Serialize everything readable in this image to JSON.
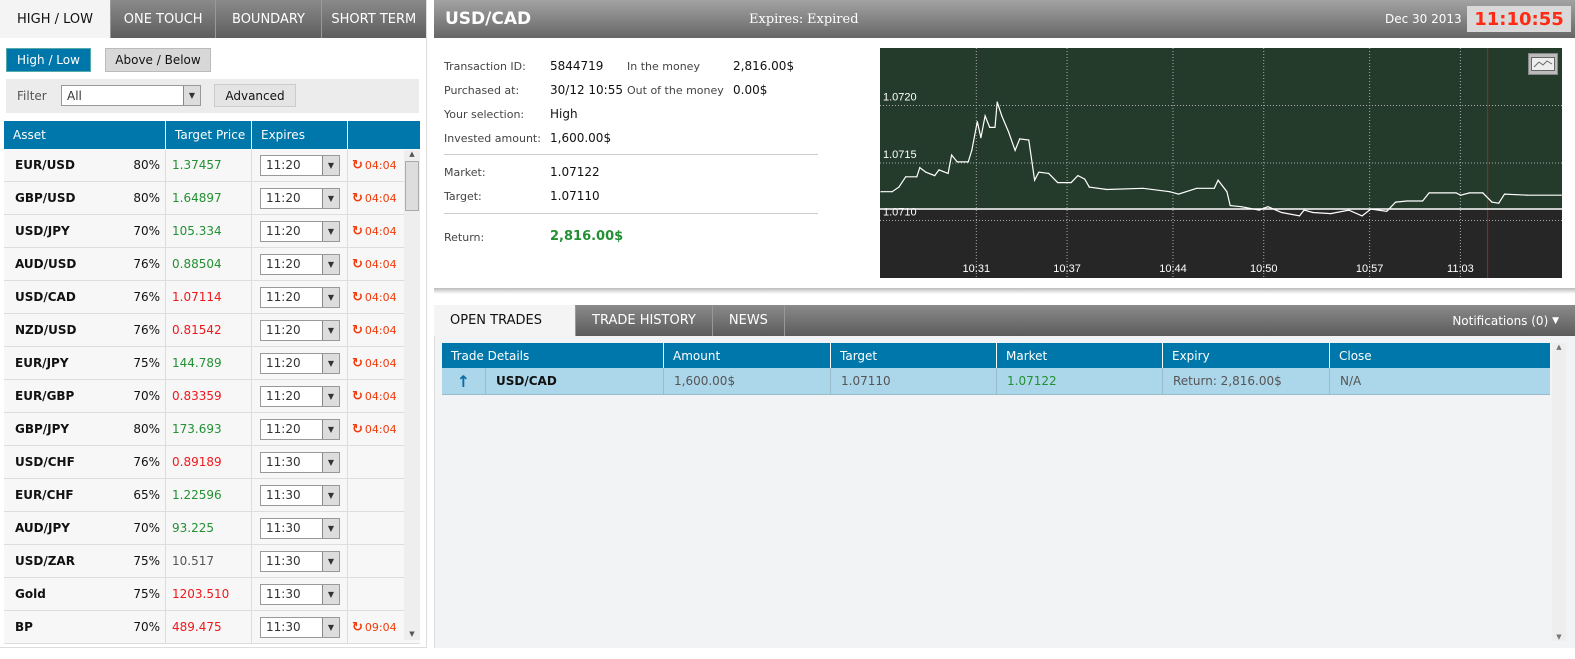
{
  "left_tabs": [
    "HIGH / LOW",
    "ONE TOUCH",
    "BOUNDARY",
    "SHORT TERM"
  ],
  "sub_buttons": [
    "High / Low",
    "Above / Below"
  ],
  "filter": {
    "label": "Filter",
    "value": "All",
    "advanced": "Advanced"
  },
  "asset_table": {
    "headers": [
      "Asset",
      "Target Price",
      "Expires",
      ""
    ],
    "rows": [
      {
        "asset": "EUR/USD",
        "pct": "80%",
        "price": "1.37457",
        "dir": "up",
        "expires": "11:20",
        "timer": "04:04"
      },
      {
        "asset": "GBP/USD",
        "pct": "80%",
        "price": "1.64897",
        "dir": "up",
        "expires": "11:20",
        "timer": "04:04"
      },
      {
        "asset": "USD/JPY",
        "pct": "70%",
        "price": "105.334",
        "dir": "up",
        "expires": "11:20",
        "timer": "04:04"
      },
      {
        "asset": "AUD/USD",
        "pct": "76%",
        "price": "0.88504",
        "dir": "up",
        "expires": "11:20",
        "timer": "04:04"
      },
      {
        "asset": "USD/CAD",
        "pct": "76%",
        "price": "1.07114",
        "dir": "down",
        "expires": "11:20",
        "timer": "04:04"
      },
      {
        "asset": "NZD/USD",
        "pct": "76%",
        "price": "0.81542",
        "dir": "down",
        "expires": "11:20",
        "timer": "04:04"
      },
      {
        "asset": "EUR/JPY",
        "pct": "75%",
        "price": "144.789",
        "dir": "up",
        "expires": "11:20",
        "timer": "04:04"
      },
      {
        "asset": "EUR/GBP",
        "pct": "70%",
        "price": "0.83359",
        "dir": "down",
        "expires": "11:20",
        "timer": "04:04"
      },
      {
        "asset": "GBP/JPY",
        "pct": "80%",
        "price": "173.693",
        "dir": "up",
        "expires": "11:20",
        "timer": "04:04"
      },
      {
        "asset": "USD/CHF",
        "pct": "76%",
        "price": "0.89189",
        "dir": "down",
        "expires": "11:30",
        "timer": ""
      },
      {
        "asset": "EUR/CHF",
        "pct": "65%",
        "price": "1.22596",
        "dir": "up",
        "expires": "11:30",
        "timer": ""
      },
      {
        "asset": "AUD/JPY",
        "pct": "70%",
        "price": "93.225",
        "dir": "up",
        "expires": "11:30",
        "timer": ""
      },
      {
        "asset": "USD/ZAR",
        "pct": "75%",
        "price": "10.517",
        "dir": "flat",
        "expires": "11:30",
        "timer": ""
      },
      {
        "asset": "Gold",
        "pct": "75%",
        "price": "1203.510",
        "dir": "down",
        "expires": "11:30",
        "timer": ""
      },
      {
        "asset": "BP",
        "pct": "70%",
        "price": "489.475",
        "dir": "down",
        "expires": "11:30",
        "timer": "09:04"
      }
    ]
  },
  "header": {
    "asset": "USD/CAD",
    "expires_label": "Expires:",
    "expires_value": "Expired",
    "date": "Dec 30 2013",
    "clock": "11:10:55"
  },
  "details": {
    "transaction_id_label": "Transaction ID:",
    "transaction_id": "5844719",
    "purchased_label": "Purchased at:",
    "purchased": "30/12 10:55",
    "selection_label": "Your selection:",
    "selection": "High",
    "invested_label": "Invested amount:",
    "invested": "1,600.00$",
    "in_money_label": "In the money",
    "in_money": "2,816.00$",
    "out_money_label": "Out of the money",
    "out_money": "0.00$",
    "market_label": "Market:",
    "market": "1.07122",
    "target_label": "Target:",
    "target": "1.07110",
    "return_label": "Return:",
    "return": "2,816.00$"
  },
  "chart_data": {
    "type": "line",
    "xlim": [
      "10:24:38",
      "11:09:43"
    ],
    "ylim": [
      1.0705,
      1.0725
    ],
    "yticks": [
      "1.0710",
      "1.0715",
      "1.0720"
    ],
    "xticks": [
      "10:31",
      "10:37",
      "10:44",
      "10:50",
      "10:57",
      "11:03"
    ],
    "target": 1.0711,
    "marker_time": "11:04:48",
    "grid": true,
    "colors": {
      "above": "#243b2b",
      "below": "#262626",
      "line": "#ffffff",
      "marker": "#c0161b"
    },
    "points": [
      [
        "10:24:42",
        1.07125
      ],
      [
        "10:25:26",
        1.07125
      ],
      [
        "10:25:53",
        1.07129
      ],
      [
        "10:26:20",
        1.07138
      ],
      [
        "10:27:04",
        1.07138
      ],
      [
        "10:27:16",
        1.07146
      ],
      [
        "10:27:40",
        1.07142
      ],
      [
        "10:28:15",
        1.07139
      ],
      [
        "10:28:32",
        1.07144
      ],
      [
        "10:29:08",
        1.07141
      ],
      [
        "10:29:22",
        1.07157
      ],
      [
        "10:29:44",
        1.07151
      ],
      [
        "10:30:28",
        1.07151
      ],
      [
        "10:30:42",
        1.07161
      ],
      [
        "10:31:04",
        1.07186
      ],
      [
        "10:31:18",
        1.07172
      ],
      [
        "10:31:35",
        1.07191
      ],
      [
        "10:31:53",
        1.07181
      ],
      [
        "10:32:14",
        1.07181
      ],
      [
        "10:32:23",
        1.07203
      ],
      [
        "10:32:41",
        1.07191
      ],
      [
        "10:33:08",
        1.07177
      ],
      [
        "10:33:34",
        1.07161
      ],
      [
        "10:33:52",
        1.07171
      ],
      [
        "10:34:28",
        1.0717
      ],
      [
        "10:34:51",
        1.07135
      ],
      [
        "10:35:08",
        1.07142
      ],
      [
        "10:35:47",
        1.07141
      ],
      [
        "10:36:23",
        1.07133
      ],
      [
        "10:37:16",
        1.07133
      ],
      [
        "10:37:43",
        1.07139
      ],
      [
        "10:38:10",
        1.07136
      ],
      [
        "10:38:28",
        1.07129
      ],
      [
        "10:39:38",
        1.07127
      ],
      [
        "10:42:01",
        1.07128
      ],
      [
        "10:43:47",
        1.07125
      ],
      [
        "10:44:22",
        1.07123
      ],
      [
        "10:45:34",
        1.07128
      ],
      [
        "10:46:44",
        1.07128
      ],
      [
        "10:46:59",
        1.07135
      ],
      [
        "10:47:34",
        1.07125
      ],
      [
        "10:47:47",
        1.07113
      ],
      [
        "10:48:31",
        1.07112
      ],
      [
        "10:49:42",
        1.07109
      ],
      [
        "10:50:17",
        1.07112
      ],
      [
        "10:51:11",
        1.07107
      ],
      [
        "10:52:22",
        1.07104
      ],
      [
        "10:52:40",
        1.07109
      ],
      [
        "10:53:15",
        1.07107
      ],
      [
        "10:54:26",
        1.07106
      ],
      [
        "10:55:37",
        1.07109
      ],
      [
        "10:56:30",
        1.07104
      ],
      [
        "10:57:05",
        1.0711
      ],
      [
        "10:58:08",
        1.07108
      ],
      [
        "10:58:43",
        1.07116
      ],
      [
        "10:59:28",
        1.07117
      ],
      [
        "11:00:30",
        1.07117
      ],
      [
        "11:00:56",
        1.07124
      ],
      [
        "11:02:43",
        1.07124
      ],
      [
        "11:03:01",
        1.07122
      ],
      [
        "11:03:36",
        1.07124
      ],
      [
        "11:04:29",
        1.07124
      ],
      [
        "11:05:05",
        1.07116
      ],
      [
        "11:05:32",
        1.07115
      ],
      [
        "11:05:55",
        1.07123
      ],
      [
        "11:07:27",
        1.07122
      ],
      [
        "11:09:40",
        1.07122
      ]
    ]
  },
  "bottom_tabs": [
    "OPEN TRADES",
    "TRADE HISTORY",
    "NEWS"
  ],
  "notifications": "Notifications (0)",
  "trades": {
    "headers": [
      "Trade Details",
      "Amount",
      "Target",
      "Market",
      "Expiry",
      "Close"
    ],
    "rows": [
      {
        "asset": "USD/CAD",
        "amount": "1,600.00$",
        "target": "1.07110",
        "market": "1.07122",
        "expiry": "Return: 2,816.00$",
        "close": "N/A"
      }
    ]
  },
  "colors": {
    "accent": "#0077aa",
    "up": "#239033",
    "down": "#f0181c",
    "clock": "#ff2a14"
  }
}
